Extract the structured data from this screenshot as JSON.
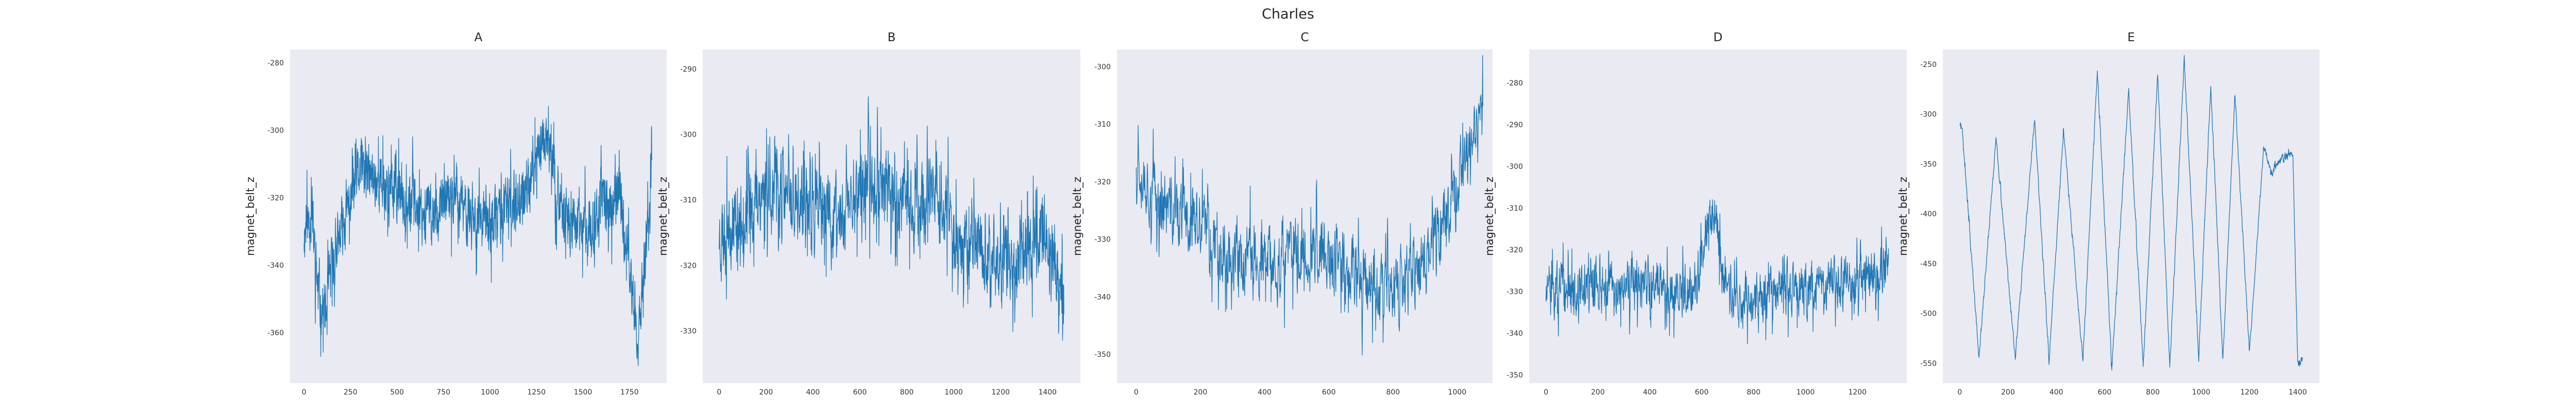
{
  "figure": {
    "title": "Charles",
    "background": "#ffffff"
  },
  "style": {
    "plot_bg": "#eaeaf2",
    "line_color": "#1f77b4",
    "grid": false
  },
  "chart_data": [
    {
      "type": "line",
      "title": "A",
      "xlabel": "",
      "ylabel": "magnet_belt_z",
      "xlim": [
        -75,
        1950
      ],
      "ylim": [
        -375,
        -276
      ],
      "xticks": [
        0,
        250,
        500,
        750,
        1000,
        1250,
        1500,
        1750
      ],
      "yticks": [
        -280,
        -300,
        -320,
        -340,
        -360
      ],
      "x_range": [
        0,
        1870
      ],
      "n_points": 1870,
      "noise": 7,
      "seed": 11,
      "series": [
        {
          "x": [
            0,
            40,
            80,
            120,
            150,
            200,
            250,
            300,
            400,
            500,
            600,
            700,
            800,
            900,
            1000,
            1100,
            1200,
            1250,
            1300,
            1350,
            1400,
            1500,
            1600,
            1700,
            1760,
            1800,
            1830,
            1870
          ],
          "y": [
            -330,
            -325,
            -350,
            -355,
            -340,
            -330,
            -320,
            -312,
            -315,
            -318,
            -322,
            -325,
            -320,
            -325,
            -328,
            -322,
            -318,
            -308,
            -300,
            -315,
            -325,
            -330,
            -322,
            -320,
            -345,
            -360,
            -340,
            -315
          ]
        }
      ]
    },
    {
      "type": "line",
      "title": "B",
      "xlabel": "",
      "ylabel": "magnet_belt_z",
      "xlim": [
        -70,
        1540
      ],
      "ylim": [
        -338,
        -287
      ],
      "xticks": [
        0,
        200,
        400,
        600,
        800,
        1000,
        1200,
        1400
      ],
      "yticks": [
        -290,
        -300,
        -310,
        -320,
        -330
      ],
      "x_range": [
        0,
        1470
      ],
      "n_points": 1470,
      "noise": 5,
      "seed": 23,
      "series": [
        {
          "x": [
            0,
            100,
            200,
            300,
            400,
            500,
            600,
            700,
            800,
            900,
            1000,
            1100,
            1200,
            1300,
            1400,
            1470
          ],
          "y": [
            -315,
            -312,
            -308,
            -310,
            -312,
            -313,
            -308,
            -307,
            -312,
            -310,
            -315,
            -317,
            -320,
            -318,
            -315,
            -325
          ]
        }
      ]
    },
    {
      "type": "line",
      "title": "C",
      "xlabel": "",
      "ylabel": "magnet_belt_z",
      "xlim": [
        -60,
        1110
      ],
      "ylim": [
        -355,
        -297
      ],
      "xticks": [
        0,
        200,
        400,
        600,
        800,
        1000
      ],
      "yticks": [
        -300,
        -310,
        -320,
        -330,
        -340,
        -350
      ],
      "x_range": [
        0,
        1080
      ],
      "n_points": 1080,
      "noise": 5,
      "seed": 37,
      "series": [
        {
          "x": [
            0,
            50,
            100,
            200,
            300,
            400,
            500,
            600,
            700,
            800,
            900,
            950,
            1000,
            1050,
            1080
          ],
          "y": [
            -315,
            -322,
            -325,
            -328,
            -333,
            -335,
            -332,
            -334,
            -336,
            -340,
            -334,
            -327,
            -320,
            -312,
            -308
          ]
        }
      ]
    },
    {
      "type": "line",
      "title": "D",
      "xlabel": "",
      "ylabel": "magnet_belt_z",
      "xlim": [
        -65,
        1390
      ],
      "ylim": [
        -352,
        -272
      ],
      "xticks": [
        0,
        200,
        400,
        600,
        800,
        1000,
        1200
      ],
      "yticks": [
        -280,
        -290,
        -300,
        -310,
        -320,
        -330,
        -340,
        -350
      ],
      "x_range": [
        0,
        1320
      ],
      "n_points": 1320,
      "noise": 5,
      "seed": 51,
      "series": [
        {
          "x": [
            0,
            100,
            200,
            300,
            400,
            500,
            580,
            620,
            650,
            680,
            720,
            800,
            900,
            1000,
            1100,
            1200,
            1320
          ],
          "y": [
            -330,
            -330,
            -328,
            -330,
            -328,
            -330,
            -328,
            -315,
            -310,
            -325,
            -332,
            -332,
            -330,
            -330,
            -328,
            -328,
            -326
          ]
        }
      ]
    },
    {
      "type": "line",
      "title": "E",
      "xlabel": "",
      "ylabel": "magnet_belt_z",
      "xlim": [
        -70,
        1490
      ],
      "ylim": [
        -570,
        -235
      ],
      "xticks": [
        0,
        200,
        400,
        600,
        800,
        1000,
        1200,
        1400
      ],
      "yticks": [
        -250,
        -300,
        -350,
        -400,
        -450,
        -500,
        -550
      ],
      "x_range": [
        0,
        1420
      ],
      "n_points": 1420,
      "noise": 3,
      "seed": 71,
      "series": [
        {
          "x": [
            0,
            10,
            80,
            150,
            230,
            310,
            370,
            430,
            510,
            570,
            630,
            700,
            760,
            820,
            870,
            930,
            990,
            1040,
            1090,
            1140,
            1200,
            1260,
            1290,
            1330,
            1380,
            1400,
            1420
          ],
          "y": [
            -310,
            -315,
            -545,
            -325,
            -545,
            -305,
            -548,
            -315,
            -550,
            -255,
            -555,
            -275,
            -552,
            -260,
            -555,
            -245,
            -545,
            -270,
            -548,
            -280,
            -540,
            -330,
            -360,
            -345,
            -340,
            -550,
            -545
          ]
        }
      ]
    }
  ]
}
